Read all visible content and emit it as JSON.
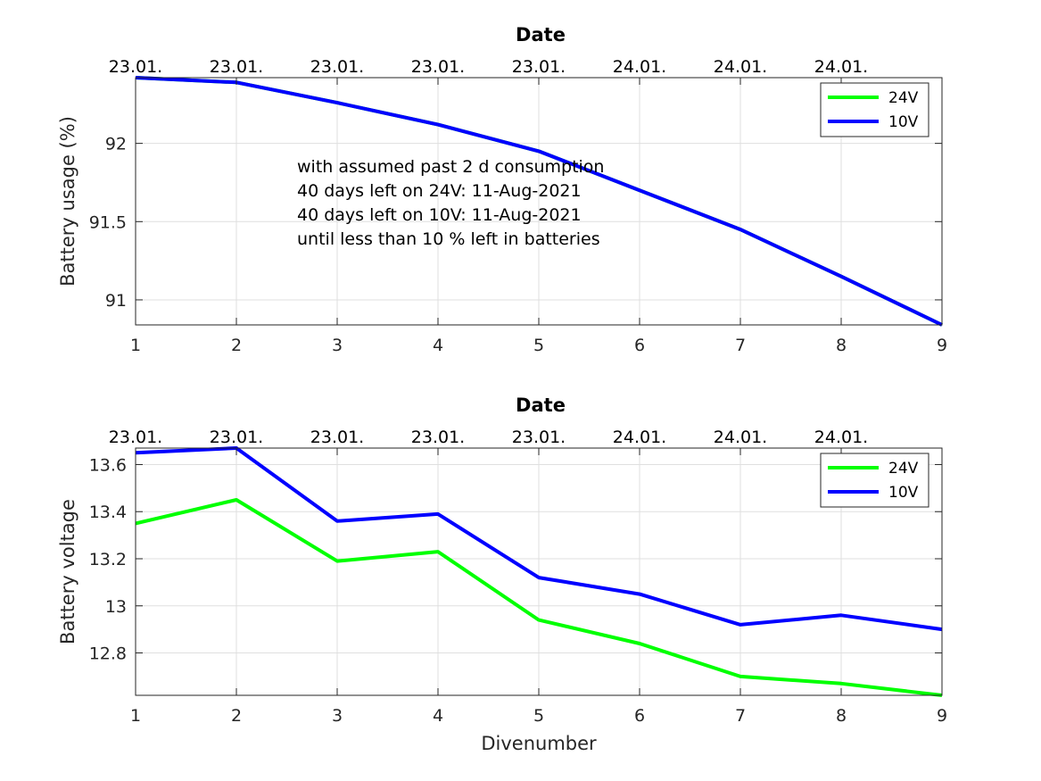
{
  "chart_data": [
    {
      "type": "line",
      "title": "Date",
      "xlabel": "",
      "ylabel": "Battery usage (%)",
      "x": [
        1,
        2,
        3,
        4,
        5,
        6,
        7,
        8,
        9
      ],
      "xlim": [
        1,
        9
      ],
      "ylim": [
        90.84,
        92.42
      ],
      "xticks": [
        1,
        2,
        3,
        4,
        5,
        6,
        7,
        8,
        9
      ],
      "yticks": [
        91,
        91.5,
        92
      ],
      "top_axis_ticks": [
        "23.01.",
        "23.01.",
        "23.01.",
        "23.01.",
        "23.01.",
        "24.01.",
        "24.01.",
        "24.01."
      ],
      "grid": true,
      "legend": "top-right",
      "series": [
        {
          "name": "24V",
          "color": "#00ff00",
          "values": [
            92.42,
            92.39,
            92.26,
            92.12,
            91.95,
            91.7,
            91.45,
            91.15,
            90.84
          ]
        },
        {
          "name": "10V",
          "color": "#0000ff",
          "values": [
            92.42,
            92.39,
            92.26,
            92.12,
            91.95,
            91.7,
            91.45,
            91.15,
            90.84
          ]
        }
      ],
      "annotation": [
        "with assumed past 2 d consumption",
        "40 days left on 24V: 11-Aug-2021",
        "40 days left on 10V: 11-Aug-2021",
        "until less than 10 % left in batteries"
      ]
    },
    {
      "type": "line",
      "title": "Date",
      "xlabel": "Divenumber",
      "ylabel": "Battery voltage",
      "x": [
        1,
        2,
        3,
        4,
        5,
        6,
        7,
        8,
        9
      ],
      "xlim": [
        1,
        9
      ],
      "ylim": [
        12.62,
        13.67
      ],
      "xticks": [
        1,
        2,
        3,
        4,
        5,
        6,
        7,
        8,
        9
      ],
      "yticks": [
        12.8,
        13,
        13.2,
        13.4,
        13.6
      ],
      "top_axis_ticks": [
        "23.01.",
        "23.01.",
        "23.01.",
        "23.01.",
        "23.01.",
        "24.01.",
        "24.01.",
        "24.01."
      ],
      "grid": true,
      "legend": "top-right",
      "series": [
        {
          "name": "24V",
          "color": "#00ff00",
          "values": [
            13.35,
            13.45,
            13.19,
            13.23,
            12.94,
            12.84,
            12.7,
            12.67,
            12.62
          ]
        },
        {
          "name": "10V",
          "color": "#0000ff",
          "values": [
            13.65,
            13.67,
            13.36,
            13.39,
            13.12,
            13.05,
            12.92,
            12.96,
            12.9
          ]
        }
      ]
    }
  ]
}
